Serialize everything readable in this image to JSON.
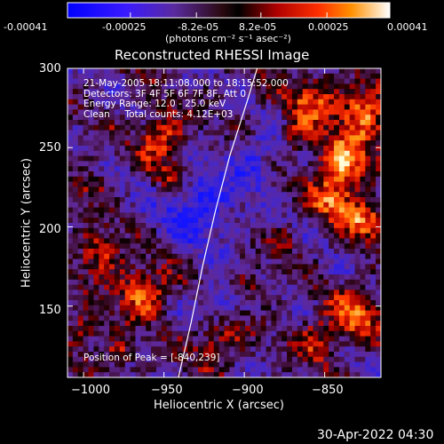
{
  "colorbar": {
    "tick_labels": [
      "-0.00041",
      "-0.00025",
      "-8.2e-05",
      "8.2e-05",
      "0.00025",
      "0.00041"
    ],
    "unit_label": "(photons cm⁻² s⁻¹ asec⁻²)",
    "min": -0.00041,
    "max": 0.00041
  },
  "chart_data": {
    "type": "heatmap",
    "title": "Reconstructed RHESSI Image",
    "xlabel": "Heliocentric X (arcsec)",
    "ylabel": "Heliocentric Y (arcsec)",
    "xlim": [
      -1010,
      -815
    ],
    "ylim": [
      105,
      300
    ],
    "x_ticks": [
      -1000,
      -950,
      -900,
      -850
    ],
    "y_ticks": [
      150,
      200,
      250,
      300
    ],
    "x_tick_labels": [
      "−1000",
      "−950",
      "−900",
      "−850"
    ],
    "y_tick_labels": [
      "150",
      "200",
      "250",
      "300"
    ],
    "limb_curve": {
      "color": "#ffffff",
      "points": [
        [
          -941,
          105
        ],
        [
          -933,
          140
        ],
        [
          -926,
          175
        ],
        [
          -918,
          210
        ],
        [
          -909,
          245
        ],
        [
          -898,
          280
        ],
        [
          -892,
          300
        ]
      ]
    },
    "peak": [
      -840,
      239
    ],
    "colormap": "red-temperature with negative blue-purple",
    "grid": false
  },
  "info": {
    "lines": [
      "21-May-2005 18:11:08.000 to 18:15:52.000",
      "Detectors: 3F 4F 5F 6F 7F 8F, Att 0",
      "Energy Range: 12.0 - 25.0 keV",
      "Clean     Total counts: 4.12E+03"
    ],
    "peak_label": "Position of Peak = [-840,239]"
  },
  "footer": {
    "timestamp": "30-Apr-2022 04:30"
  }
}
